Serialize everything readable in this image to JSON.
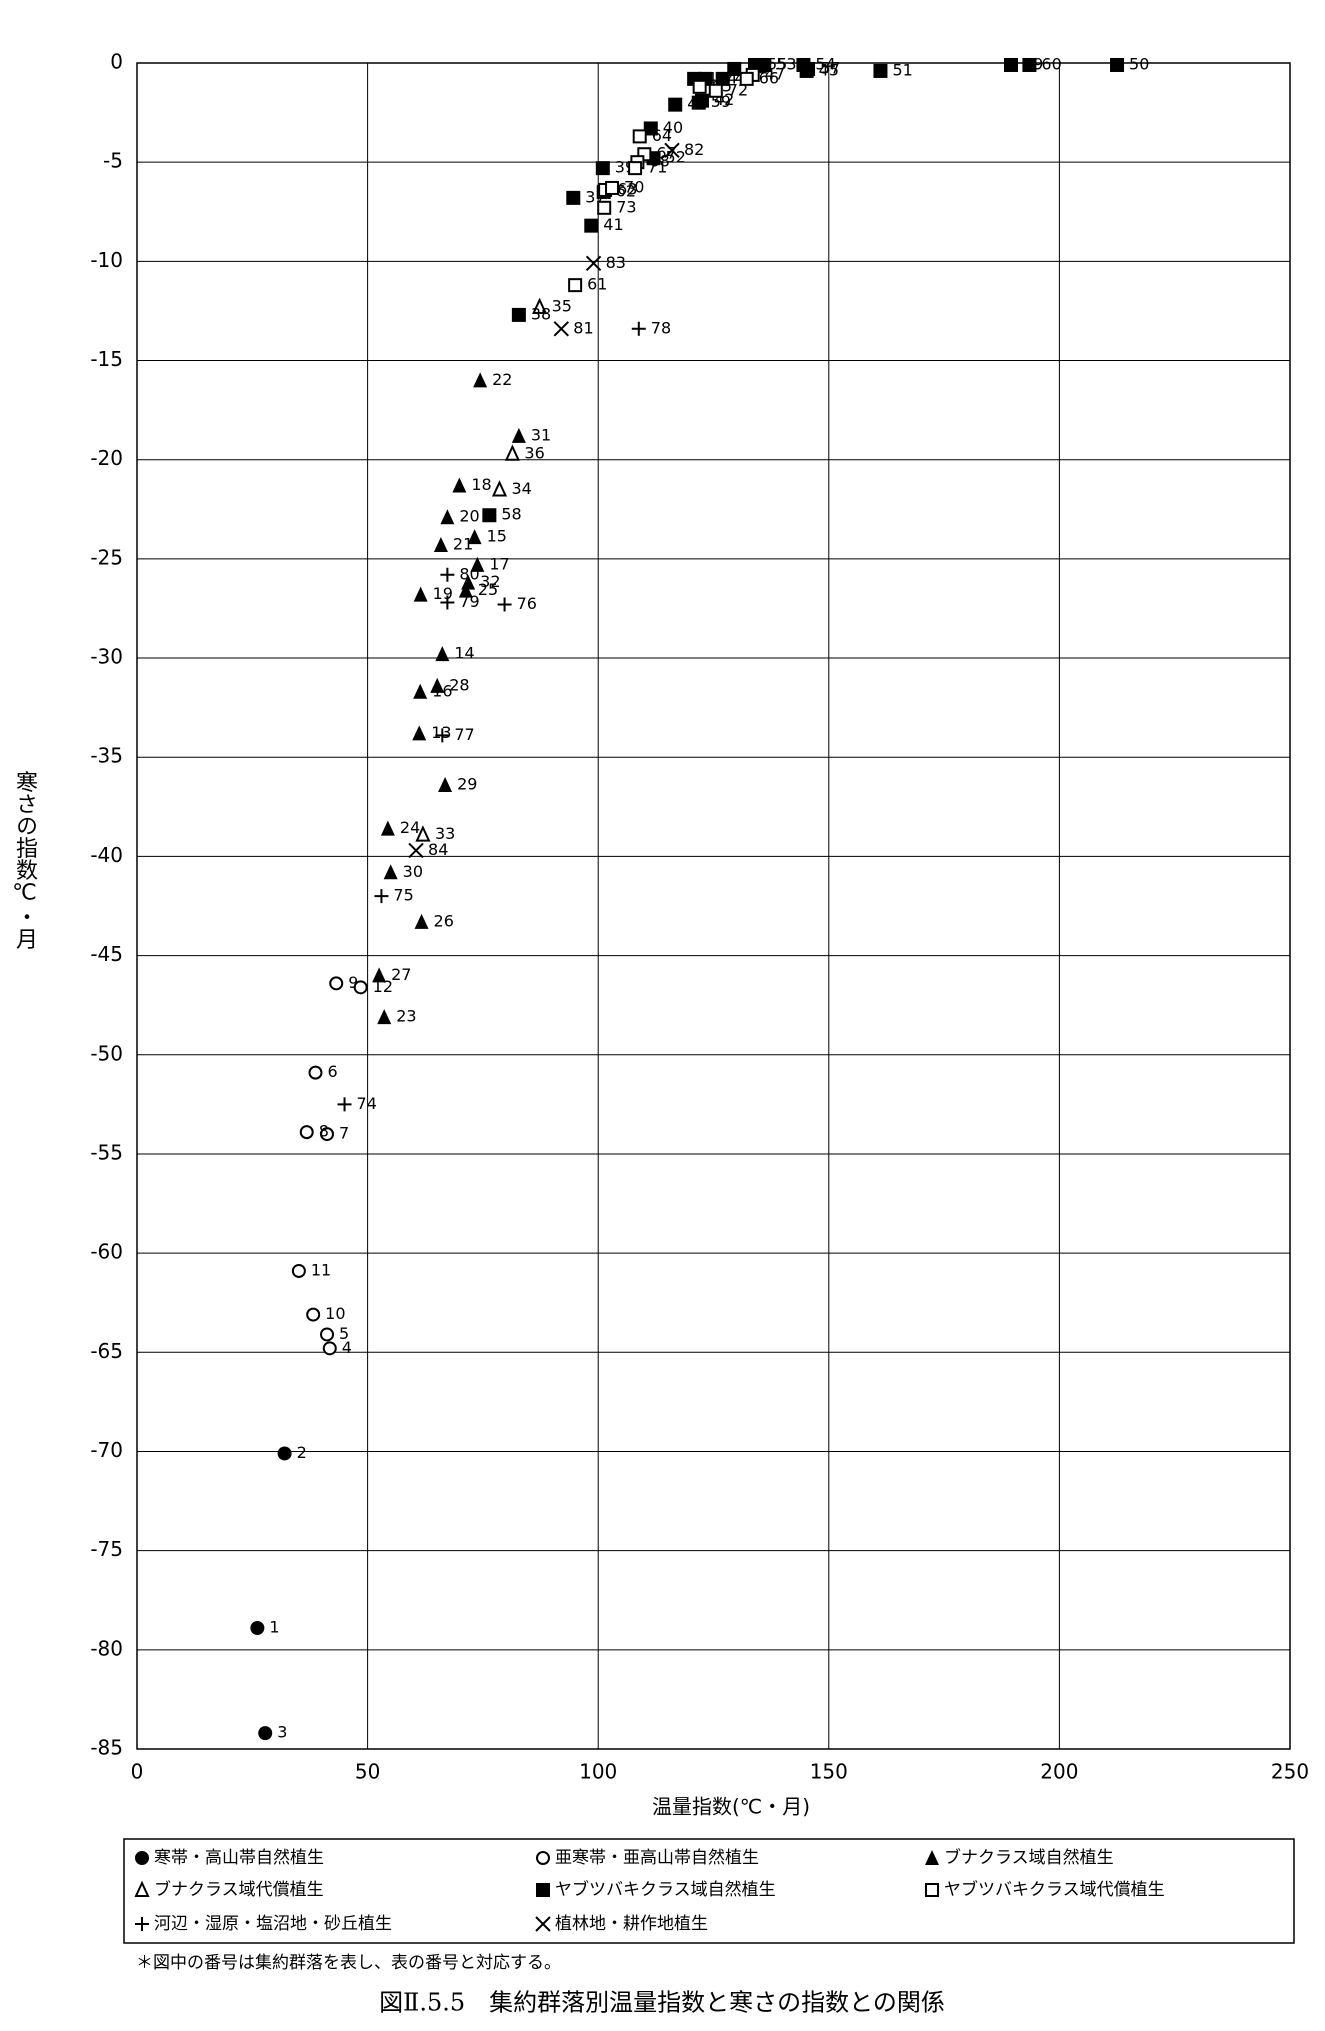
{
  "chart_data": {
    "type": "scatter",
    "title": "図Ⅱ.5.5　集約群落別温量指数と寒さの指数との関係",
    "note": "＊図中の番号は集約群落を表し、表の番号と対応する。",
    "x_label": "温量指数(℃・月)",
    "y_label": "寒さの指数℃・月",
    "xlim": [
      0,
      250
    ],
    "xticks": [
      0,
      50,
      100,
      150,
      200,
      250
    ],
    "ylim": [
      -85,
      0
    ],
    "yticks": [
      0,
      -5,
      -10,
      -15,
      -20,
      -25,
      -30,
      -35,
      -40,
      -45,
      -50,
      -55,
      -60,
      -65,
      -70,
      -75,
      -80,
      -85
    ],
    "grid": true,
    "series": [
      {
        "name": "寒帯・高山帯自然植生",
        "marker": "circle-filled",
        "color": "#000000",
        "labels": [
          "1",
          "2",
          "3"
        ],
        "x": [
          26.1,
          32.0,
          27.8
        ],
        "values": [
          -78.9,
          -70.1,
          -84.2
        ]
      },
      {
        "name": "亜寒帯・亜高山帯自然植生",
        "marker": "circle-open",
        "color": "#000000",
        "labels": [
          "4",
          "5",
          "6",
          "7",
          "8",
          "9",
          "10",
          "11",
          "12"
        ],
        "x": [
          41.8,
          41.2,
          38.7,
          41.2,
          36.8,
          43.2,
          38.2,
          35.1,
          48.5
        ],
        "values": [
          -64.8,
          -64.1,
          -50.9,
          -54.0,
          -53.9,
          -46.4,
          -63.1,
          -60.9,
          -46.6
        ]
      },
      {
        "name": "ブナクラス域自然植生",
        "marker": "triangle-filled",
        "color": "#000000",
        "labels": [
          "13",
          "14",
          "15",
          "16",
          "17",
          "18",
          "19",
          "20",
          "21",
          "22",
          "23",
          "24",
          "25",
          "26",
          "27",
          "28",
          "29",
          "30",
          "31",
          "32"
        ],
        "x": [
          61.2,
          66.2,
          73.2,
          61.4,
          73.8,
          69.9,
          61.5,
          67.3,
          65.9,
          74.4,
          53.6,
          54.4,
          71.3,
          61.7,
          52.5,
          65.1,
          66.8,
          55.0,
          82.8,
          71.8
        ],
        "values": [
          -33.8,
          -29.8,
          -23.9,
          -31.7,
          -25.3,
          -21.3,
          -26.8,
          -22.9,
          -24.3,
          -16.0,
          -48.1,
          -38.6,
          -26.6,
          -43.3,
          -46.0,
          -31.4,
          -36.4,
          -40.8,
          -18.8,
          -26.2
        ]
      },
      {
        "name": "ブナクラス域代償植生",
        "marker": "triangle-open",
        "color": "#000000",
        "labels": [
          "33",
          "34",
          "35",
          "36"
        ],
        "x": [
          62.0,
          78.6,
          87.3,
          81.4
        ],
        "values": [
          -38.9,
          -21.5,
          -12.3,
          -19.7
        ]
      },
      {
        "name": "ヤブツバキクラス域自然植生",
        "marker": "square-filled",
        "color": "#000000",
        "labels": [
          "37",
          "38",
          "39",
          "40",
          "41",
          "42",
          "43",
          "44",
          "45",
          "46",
          "48",
          "49",
          "50",
          "51",
          "52",
          "53",
          "54",
          "55",
          "56",
          "57",
          "58",
          "59",
          "60"
        ],
        "x": [
          94.6,
          82.8,
          101.0,
          111.4,
          98.5,
          122.5,
          127.0,
          123.2,
          145.2,
          116.7,
          120.8,
          189.5,
          212.5,
          161.2,
          112.0,
          136.0,
          144.5,
          134.0,
          129.5,
          145.5,
          76.4,
          121.8,
          193.5
        ],
        "values": [
          -6.8,
          -12.7,
          -5.3,
          -3.3,
          -8.2,
          -1.9,
          -0.8,
          -0.8,
          -0.4,
          -2.1,
          -0.8,
          -0.1,
          -0.1,
          -0.4,
          -4.8,
          -0.1,
          -0.1,
          -0.1,
          -0.3,
          -0.3,
          -22.8,
          -2.0,
          -0.1
        ]
      },
      {
        "name": "ヤブツバキクラス域代償植生",
        "marker": "square-open",
        "color": "#000000",
        "labels": [
          "47",
          "61",
          "62",
          "63",
          "64",
          "65",
          "66",
          "67",
          "68",
          "70",
          "71",
          "72",
          "73"
        ],
        "x": [
          133.5,
          95.0,
          101.2,
          101.5,
          109.0,
          122.0,
          132.2,
          110.0,
          108.5,
          103.0,
          108.0,
          125.5,
          101.3
        ],
        "values": [
          -0.6,
          -11.2,
          -6.5,
          -6.4,
          -3.7,
          -1.2,
          -0.8,
          -4.6,
          -5.0,
          -6.3,
          -5.3,
          -1.4,
          -7.3
        ]
      },
      {
        "name": "河辺・湿原・塩沼地・砂丘植生",
        "marker": "plus",
        "color": "#000000",
        "labels": [
          "74",
          "75",
          "76",
          "77",
          "78",
          "79",
          "80"
        ],
        "x": [
          45.0,
          53.0,
          79.7,
          66.2,
          108.8,
          67.3,
          67.3
        ],
        "values": [
          -52.5,
          -42.0,
          -27.3,
          -33.9,
          -13.4,
          -27.2,
          -25.8
        ]
      },
      {
        "name": "植林地・耕作地植生",
        "marker": "cross",
        "color": "#000000",
        "labels": [
          "81",
          "82",
          "83",
          "84"
        ],
        "x": [
          92.0,
          116.0,
          99.0,
          60.5
        ],
        "values": [
          -13.4,
          -4.4,
          -10.1,
          -39.7
        ]
      }
    ]
  }
}
